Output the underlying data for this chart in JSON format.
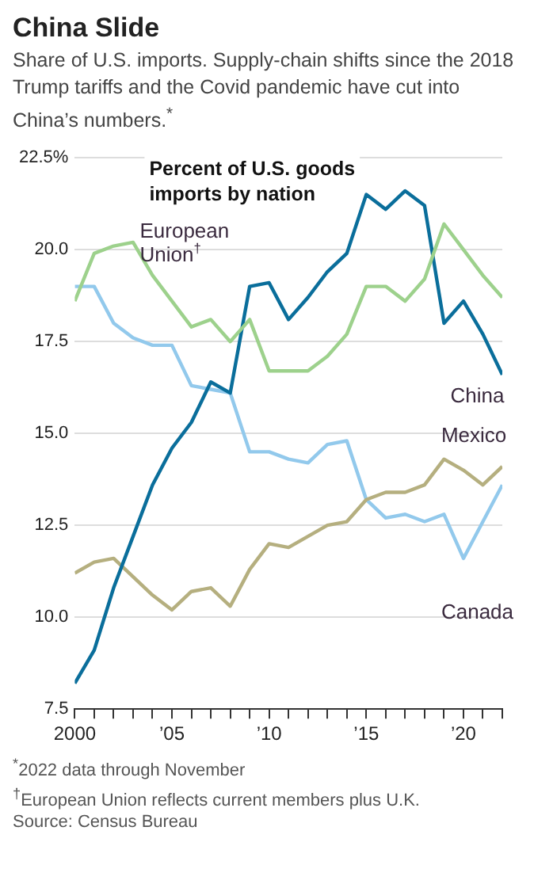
{
  "chart_data": {
    "type": "line",
    "title": "China Slide",
    "subtitle": "Share of U.S. imports. Supply-chain shifts since the 2018 Trump tariffs and the Covid pandemic have cut into China’s numbers.$^{*}$",
    "ylabel": "Percent of U.S. goods imports by nation",
    "x": [
      2000,
      2001,
      2002,
      2003,
      2004,
      2005,
      2006,
      2007,
      2008,
      2009,
      2010,
      2011,
      2012,
      2013,
      2014,
      2015,
      2016,
      2017,
      2018,
      2019,
      2020,
      2021,
      2022
    ],
    "series": [
      {
        "name": "European Union$^{†}$",
        "color": "#9dd18c",
        "values": [
          18.6,
          19.9,
          20.1,
          20.2,
          19.3,
          18.6,
          17.9,
          18.1,
          17.5,
          18.1,
          16.7,
          16.7,
          16.7,
          17.1,
          17.7,
          19.0,
          19.0,
          18.6,
          19.2,
          20.7,
          20.0,
          19.3,
          18.7
        ]
      },
      {
        "name": "China",
        "color": "#0a6e9b",
        "values": [
          8.2,
          9.1,
          10.8,
          12.2,
          13.6,
          14.6,
          15.3,
          16.4,
          16.1,
          19.0,
          19.1,
          18.1,
          18.7,
          19.4,
          19.9,
          21.5,
          21.1,
          21.6,
          21.2,
          18.0,
          18.6,
          17.7,
          16.6
        ]
      },
      {
        "name": "Mexico",
        "color": "#b5af7f",
        "values": [
          11.2,
          11.5,
          11.6,
          11.1,
          10.6,
          10.2,
          10.7,
          10.8,
          10.3,
          11.3,
          12.0,
          11.9,
          12.2,
          12.5,
          12.6,
          13.2,
          13.4,
          13.4,
          13.6,
          14.3,
          14.0,
          13.6,
          14.1
        ]
      },
      {
        "name": "Canada",
        "color": "#92c9ec",
        "values": [
          19.0,
          19.0,
          18.0,
          17.6,
          17.4,
          17.4,
          16.3,
          16.2,
          16.1,
          14.5,
          14.5,
          14.3,
          14.2,
          14.7,
          14.8,
          13.2,
          12.7,
          12.8,
          12.6,
          12.8,
          11.6,
          12.6,
          13.6
        ]
      }
    ],
    "xlim": [
      2000,
      2022
    ],
    "xticks": [
      {
        "value": 2000,
        "label": "2000"
      },
      {
        "value": 2001,
        "label": null
      },
      {
        "value": 2002,
        "label": null
      },
      {
        "value": 2003,
        "label": null
      },
      {
        "value": 2004,
        "label": null
      },
      {
        "value": 2005,
        "label": "’05"
      },
      {
        "value": 2006,
        "label": null
      },
      {
        "value": 2007,
        "label": null
      },
      {
        "value": 2008,
        "label": null
      },
      {
        "value": 2009,
        "label": null
      },
      {
        "value": 2010,
        "label": "’10"
      },
      {
        "value": 2011,
        "label": null
      },
      {
        "value": 2012,
        "label": null
      },
      {
        "value": 2013,
        "label": null
      },
      {
        "value": 2014,
        "label": null
      },
      {
        "value": 2015,
        "label": "’15"
      },
      {
        "value": 2016,
        "label": null
      },
      {
        "value": 2017,
        "label": null
      },
      {
        "value": 2018,
        "label": null
      },
      {
        "value": 2019,
        "label": null
      },
      {
        "value": 2020,
        "label": "’20"
      },
      {
        "value": 2021,
        "label": null
      },
      {
        "value": 2022,
        "label": null
      }
    ],
    "ylim": [
      7.5,
      22.5
    ],
    "yticks": [
      {
        "value": 7.5,
        "label": "7.5"
      },
      {
        "value": 10,
        "label": "10.0"
      },
      {
        "value": 12.5,
        "label": "12.5"
      },
      {
        "value": 15,
        "label": "15.0"
      },
      {
        "value": 17.5,
        "label": "17.5"
      },
      {
        "value": 20,
        "label": "20.0"
      },
      {
        "value": 22.5,
        "label": "22.5%"
      }
    ],
    "grid": "y",
    "legend": false,
    "marker": "none",
    "line_style": "solid",
    "annotations": [
      "$^{*}$2022 data through November",
      "$^{†}$European Union reflects current members plus U.K.",
      "Source: Census Bureau"
    ]
  }
}
